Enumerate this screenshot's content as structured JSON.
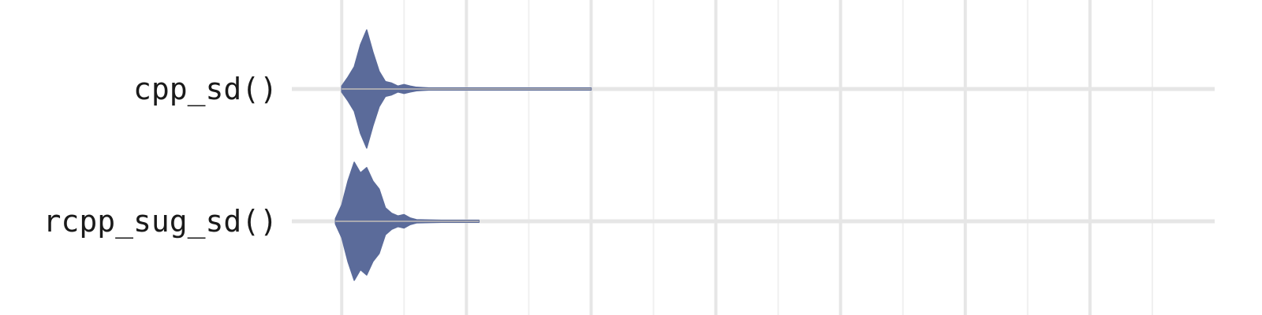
{
  "chart_data": {
    "type": "violin",
    "title": "",
    "xlabel": "",
    "ylabel": "",
    "grid": true,
    "categories": [
      "cpp_sd()",
      "rcpp_sug_sd()"
    ],
    "series": [
      {
        "name": "cpp_sd()",
        "color": "#5b6b9a",
        "profile": [
          [
            0.0,
            0.2
          ],
          [
            0.05,
            0.8
          ],
          [
            0.1,
            1.5
          ],
          [
            0.15,
            3.0
          ],
          [
            0.2,
            4.0
          ],
          [
            0.25,
            2.5
          ],
          [
            0.3,
            1.2
          ],
          [
            0.35,
            0.5
          ],
          [
            0.4,
            0.4
          ],
          [
            0.45,
            0.2
          ],
          [
            0.5,
            0.3
          ],
          [
            0.55,
            0.2
          ],
          [
            0.6,
            0.12
          ],
          [
            0.7,
            0.06
          ],
          [
            1.0,
            0.02
          ],
          [
            2.0,
            0.02
          ]
        ]
      },
      {
        "name": "rcpp_sug_sd()",
        "color": "#5b6b9a",
        "profile": [
          [
            -0.05,
            0.1
          ],
          [
            0.0,
            0.6
          ],
          [
            0.05,
            1.5
          ],
          [
            0.1,
            2.2
          ],
          [
            0.15,
            1.8
          ],
          [
            0.2,
            2.0
          ],
          [
            0.25,
            1.5
          ],
          [
            0.3,
            1.2
          ],
          [
            0.35,
            0.5
          ],
          [
            0.4,
            0.3
          ],
          [
            0.45,
            0.2
          ],
          [
            0.5,
            0.25
          ],
          [
            0.55,
            0.12
          ],
          [
            0.6,
            0.06
          ],
          [
            0.8,
            0.03
          ],
          [
            1.1,
            0.02
          ]
        ]
      }
    ],
    "xlim": [
      -0.4,
      7.0
    ],
    "x_grid_major": [
      0,
      1,
      2,
      3,
      4,
      5,
      6
    ],
    "x_grid_minor": [
      -0.5,
      0.5,
      1.5,
      2.5,
      3.5,
      4.5,
      5.5,
      6.5
    ]
  }
}
